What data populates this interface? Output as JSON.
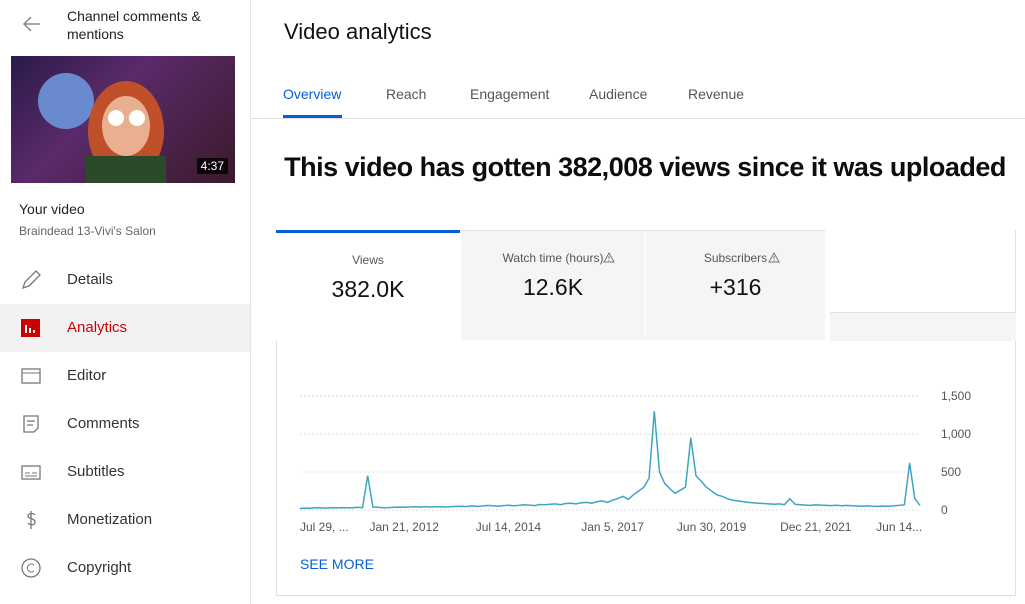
{
  "sidebar": {
    "title": "Channel comments & mentions",
    "duration": "4:37",
    "your_video": "Your video",
    "video_title": "Braindead 13-Vivi's Salon",
    "nav": [
      "Details",
      "Analytics",
      "Editor",
      "Comments",
      "Subtitles",
      "Monetization",
      "Copyright"
    ]
  },
  "main": {
    "title": "Video analytics",
    "tabs": [
      "Overview",
      "Reach",
      "Engagement",
      "Audience",
      "Revenue"
    ],
    "headline": "This video has gotten 382,008 views since it was uploaded",
    "cards": [
      {
        "label": "Views",
        "value": "382.0K"
      },
      {
        "label": "Watch time (hours)",
        "value": "12.6K"
      },
      {
        "label": "Subscribers",
        "value": "+316"
      }
    ],
    "see_more": "SEE MORE"
  },
  "chart_data": {
    "type": "line",
    "categories": [
      "Jul 29, ...",
      null,
      null,
      null,
      null,
      null,
      null,
      null,
      null,
      null,
      null,
      null,
      null,
      null,
      null,
      null,
      null,
      null,
      null,
      null,
      "Jan 21, 2012",
      null,
      null,
      null,
      null,
      null,
      null,
      null,
      null,
      null,
      null,
      null,
      null,
      null,
      null,
      null,
      null,
      null,
      null,
      null,
      "Jul 14, 2014",
      null,
      null,
      null,
      null,
      null,
      null,
      null,
      null,
      null,
      null,
      null,
      null,
      null,
      null,
      null,
      null,
      null,
      null,
      null,
      "Jan 5, 2017",
      null,
      null,
      null,
      null,
      null,
      null,
      null,
      null,
      null,
      null,
      null,
      null,
      null,
      null,
      null,
      null,
      null,
      null,
      "Jun 30, 2019",
      null,
      null,
      null,
      null,
      null,
      null,
      null,
      null,
      null,
      null,
      null,
      null,
      null,
      null,
      null,
      null,
      null,
      null,
      null,
      "Dec 21, 2021",
      null,
      null,
      null,
      null,
      null,
      null,
      null,
      null,
      null,
      null,
      null,
      null,
      null,
      null,
      null,
      "Jun 14...",
      null,
      null,
      null,
      null
    ],
    "series": [
      {
        "color": "#3ea6c3",
        "values": [
          20,
          25,
          22,
          30,
          28,
          25,
          30,
          27,
          32,
          30,
          28,
          35,
          30,
          450,
          40,
          35,
          30,
          32,
          35,
          38,
          36,
          40,
          42,
          38,
          45,
          40,
          44,
          42,
          40,
          45,
          48,
          50,
          45,
          55,
          48,
          52,
          60,
          55,
          50,
          58,
          62,
          55,
          60,
          70,
          65,
          58,
          72,
          68,
          75,
          80,
          70,
          85,
          90,
          80,
          95,
          100,
          90,
          110,
          120,
          100,
          130,
          150,
          180,
          140,
          200,
          250,
          300,
          420,
          1300,
          500,
          350,
          280,
          220,
          260,
          300,
          950,
          450,
          380,
          300,
          250,
          200,
          180,
          150,
          130,
          120,
          110,
          100,
          95,
          90,
          85,
          80,
          75,
          80,
          70,
          150,
          75,
          70,
          65,
          60,
          70,
          65,
          60,
          58,
          62,
          55,
          60,
          55,
          52,
          50,
          55,
          50,
          48,
          52,
          50,
          55,
          60,
          70,
          620,
          150,
          60
        ]
      }
    ],
    "ylim": [
      0,
      1500
    ],
    "yticks": [
      0,
      500,
      {
        "value": 1000,
        "label": "1,000"
      },
      {
        "value": 1500,
        "label": "1,500"
      }
    ],
    "grid": true
  }
}
